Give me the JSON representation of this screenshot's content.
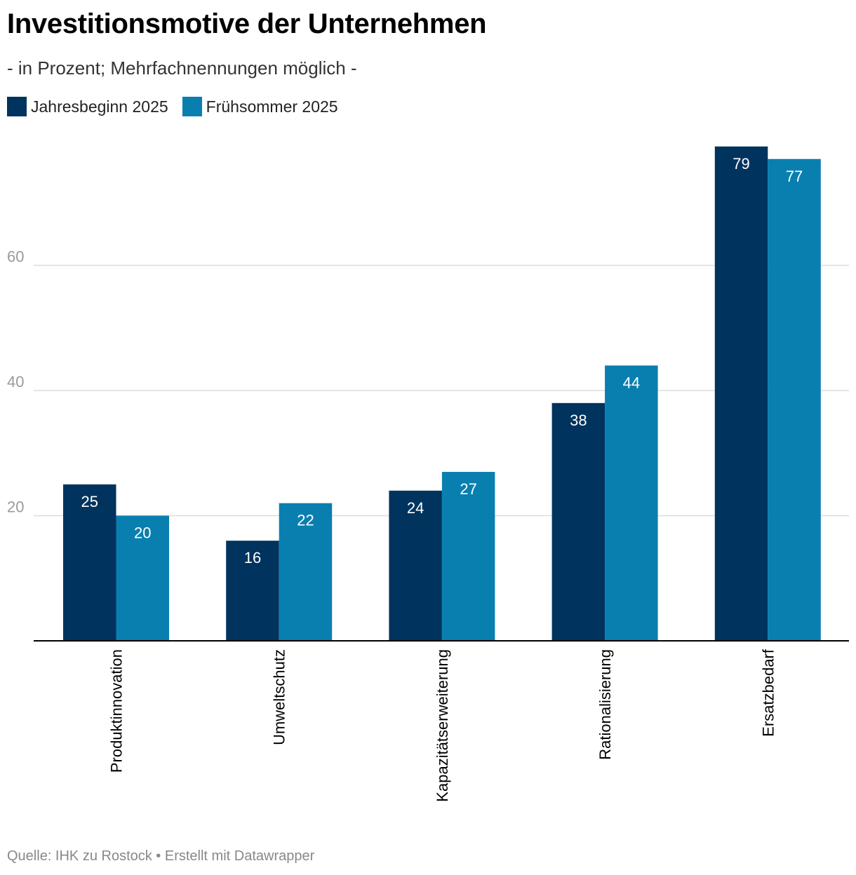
{
  "title": "Investitionsmotive der Unternehmen",
  "subtitle": "- in Prozent; Mehrfachnennungen möglich -",
  "source": "Quelle: IHK zu Rostock • Erstellt mit Datawrapper",
  "colors": {
    "series_1": "#00335e",
    "series_2": "#097fb0",
    "gridline": "#dddddd",
    "axis": "#000000"
  },
  "legend": [
    {
      "label": "Jahresbeginn 2025",
      "color": "#00335e"
    },
    {
      "label": "Frühsommer 2025",
      "color": "#097fb0"
    }
  ],
  "chart_data": {
    "type": "bar",
    "title": "Investitionsmotive der Unternehmen",
    "subtitle": "- in Prozent; Mehrfachnennungen möglich -",
    "categories": [
      "Produktinnovation",
      "Umweltschutz",
      "Kapazitätserweiterung",
      "Rationalisierung",
      "Ersatzbedarf"
    ],
    "series": [
      {
        "name": "Jahresbeginn 2025",
        "values": [
          25,
          16,
          24,
          38,
          79
        ]
      },
      {
        "name": "Frühsommer 2025",
        "values": [
          20,
          22,
          27,
          44,
          77
        ]
      }
    ],
    "yticks": [
      20,
      40,
      60
    ],
    "ylim": [
      0,
      80
    ],
    "grid": true,
    "legend_position": "top-left",
    "xlabel": "",
    "ylabel": ""
  }
}
